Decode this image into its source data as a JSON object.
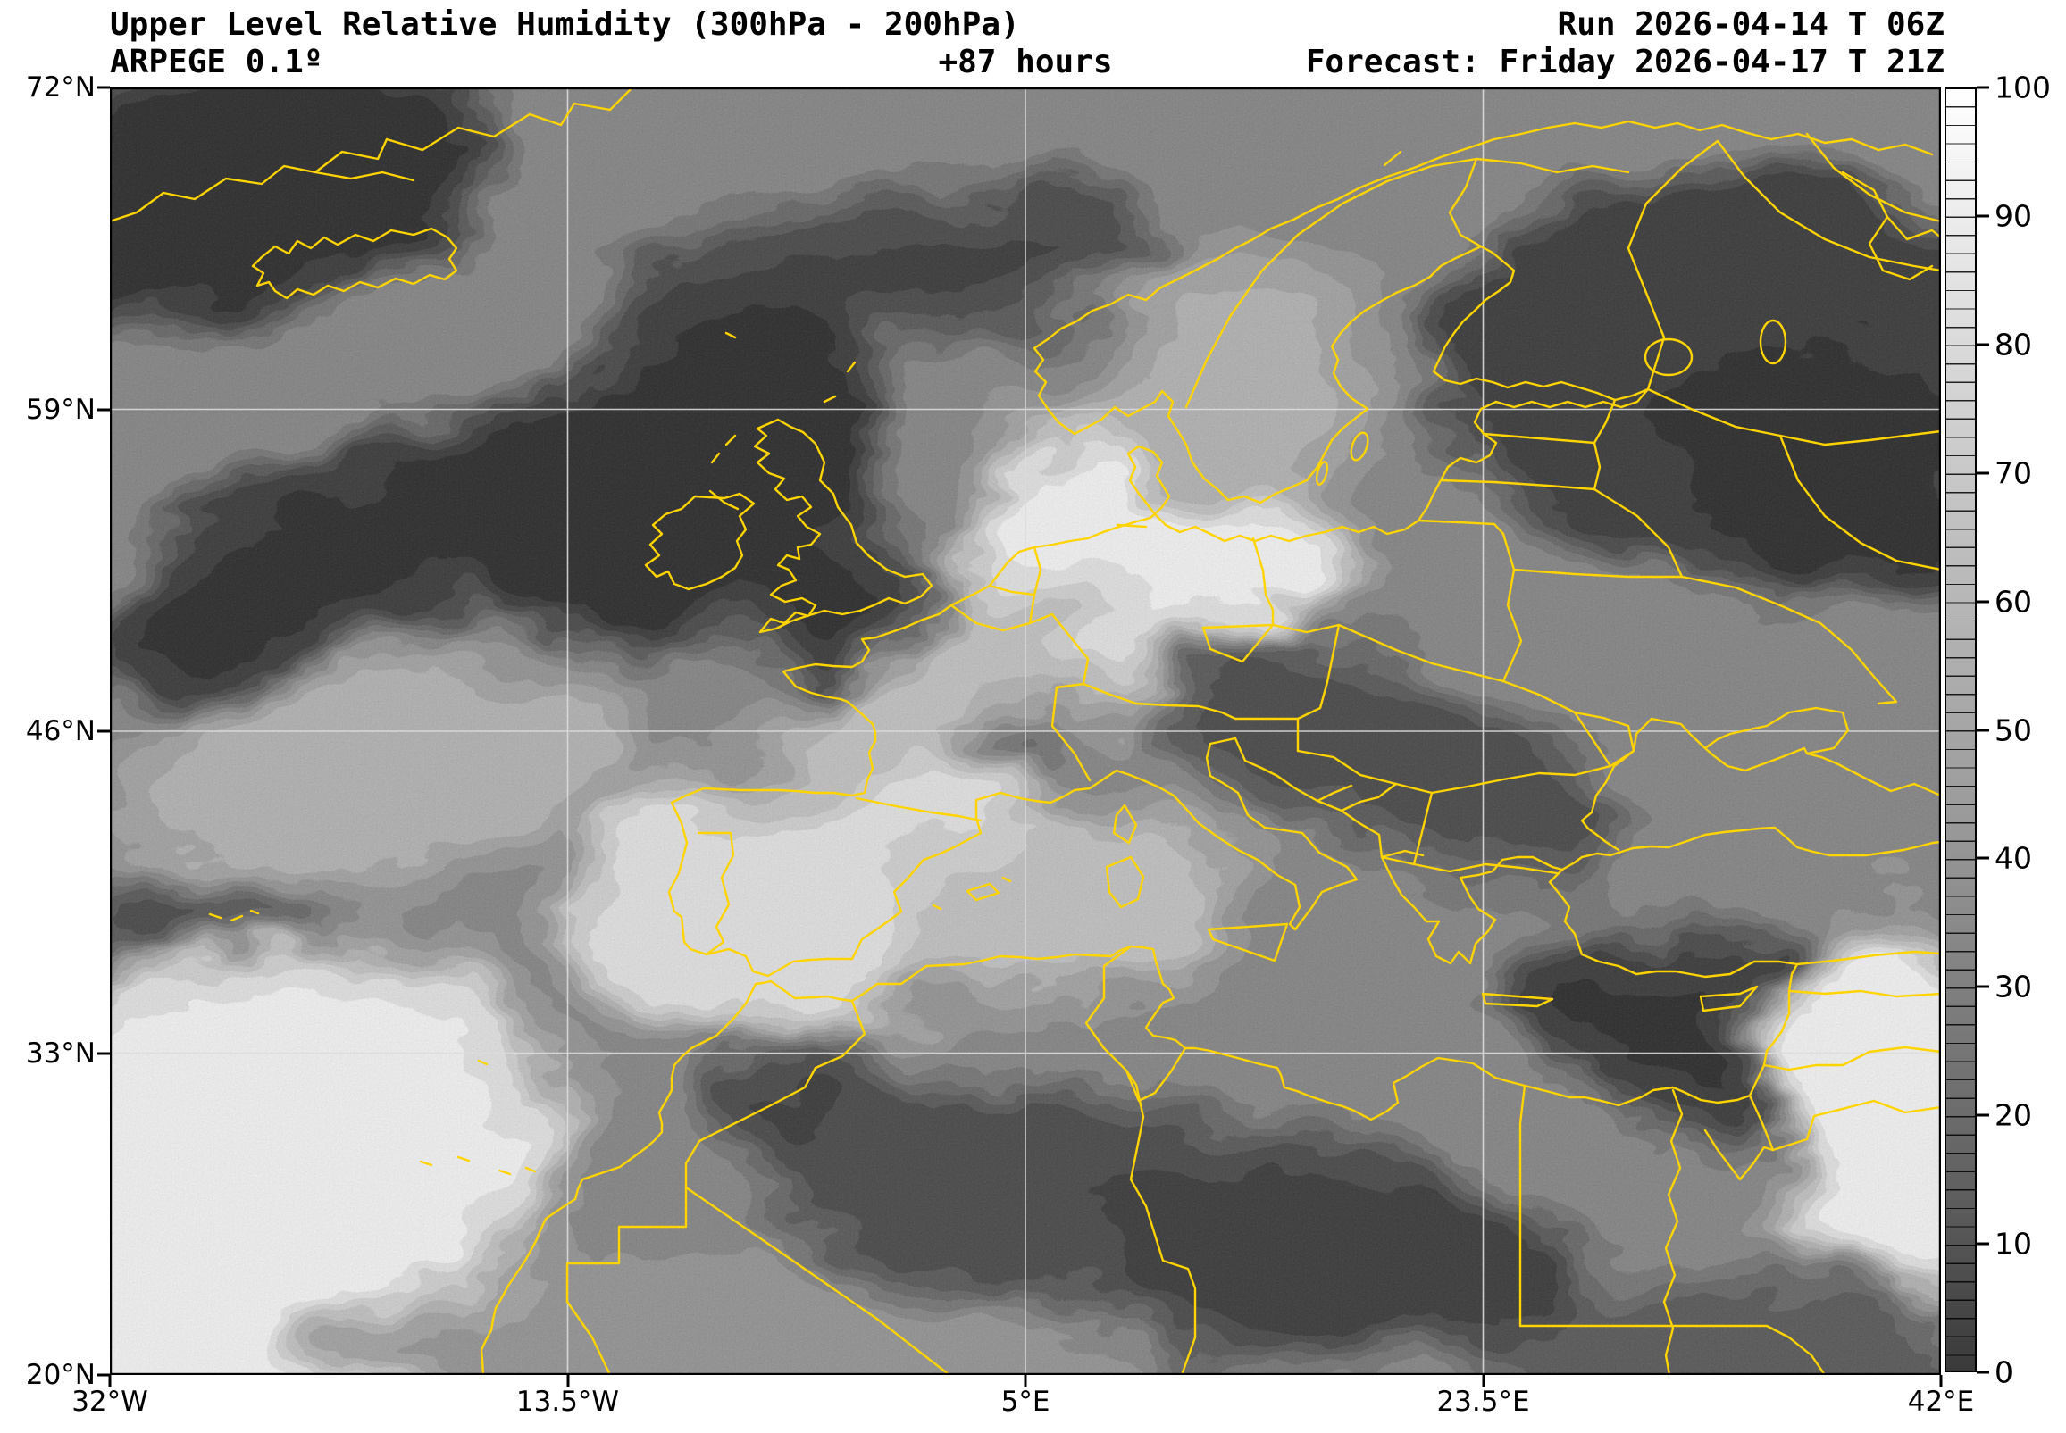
{
  "header": {
    "title": "Upper Level Relative Humidity (300hPa - 200hPa)",
    "model": "ARPEGE 0.1º",
    "lead_time": "+87 hours",
    "run": "Run 2026-04-14 T 06Z",
    "forecast": "Forecast: Friday 2026-04-17 T 21Z"
  },
  "axes": {
    "lat_labels": [
      "72°N",
      "59°N",
      "46°N",
      "33°N",
      "20°N"
    ],
    "lon_labels": [
      "32°W",
      "13.5°W",
      "5°E",
      "23.5°E",
      "42°E"
    ]
  },
  "colorbar": {
    "tick_labels": [
      "100",
      "90",
      "80",
      "70",
      "60",
      "50",
      "40",
      "30",
      "20",
      "10",
      "0"
    ],
    "min": 0,
    "max": 100,
    "unit": "%"
  },
  "colors": {
    "country_border": "#ffd400",
    "grid_line": "#dcdcdc",
    "frame": "#000000",
    "text": "#000000"
  },
  "chart_data": {
    "type": "heatmap",
    "title": "Upper Level Relative Humidity (300hPa - 200hPa)",
    "model": "ARPEGE 0.1°",
    "run": "2026-04-14 06Z",
    "valid": "Friday 2026-04-17 21Z",
    "lead_hours": 87,
    "field": "relative humidity",
    "unit": "%",
    "scale_range": [
      0,
      100
    ],
    "colorbar_ticks": [
      0,
      10,
      20,
      30,
      40,
      50,
      60,
      70,
      80,
      90,
      100
    ],
    "lat_ticks_deg": [
      72,
      59,
      46,
      33,
      20
    ],
    "lon_ticks_deg": [
      -32,
      -13.5,
      5,
      23.5,
      42
    ],
    "grid": "on",
    "legend_position": "right colorbar",
    "notes": "Grayscale shaded contour field (white = 100% RH, black = 0%) over Europe/North Africa with yellow country borders; darkest air over NE Europe, N Atlantic near UK and Algeria; near-saturated white areas over central Europe, Iberia, subtropical Atlantic and the Levant."
  }
}
